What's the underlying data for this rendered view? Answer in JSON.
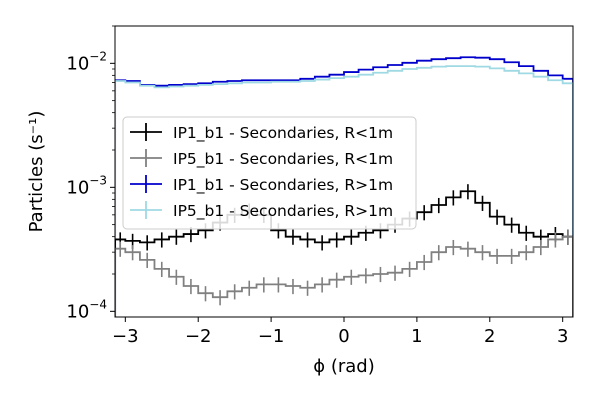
{
  "chart_data": {
    "type": "line",
    "style": "step-histogram-with-error-bars",
    "xlabel": "ϕ (rad)",
    "ylabel": "Particles (s⁻¹)",
    "xlim": [
      -3.14159,
      3.14159
    ],
    "ylim": [
      9e-05,
      0.02
    ],
    "yscale": "log",
    "grid": false,
    "legend_position": "center-left",
    "x_ticks": [
      {
        "value": -3,
        "label": "−3"
      },
      {
        "value": -2,
        "label": "−2"
      },
      {
        "value": -1,
        "label": "−1"
      },
      {
        "value": 0,
        "label": "0"
      },
      {
        "value": 1,
        "label": "1"
      },
      {
        "value": 2,
        "label": "2"
      },
      {
        "value": 3,
        "label": "3"
      }
    ],
    "y_ticks": [
      {
        "value": 0.0001,
        "base": "10",
        "exp": "−4"
      },
      {
        "value": 0.001,
        "base": "10",
        "exp": "−3"
      },
      {
        "value": 0.01,
        "base": "10",
        "exp": "−2"
      }
    ],
    "y_minor_ticks": [
      0.0002,
      0.0003,
      0.0004,
      0.0005,
      0.0006,
      0.0007,
      0.0008,
      0.0009,
      0.002,
      0.003,
      0.004,
      0.005,
      0.006,
      0.007,
      0.008,
      0.009,
      0.02
    ],
    "series": [
      {
        "name": "IP1_b1 - Secondaries, R>1m",
        "color": "#0000cc",
        "errorbars": false,
        "x": [
          -3.14,
          -3.0,
          -2.8,
          -2.6,
          -2.4,
          -2.2,
          -2.0,
          -1.8,
          -1.6,
          -1.4,
          -1.2,
          -1.0,
          -0.8,
          -0.6,
          -0.4,
          -0.2,
          0.0,
          0.2,
          0.4,
          0.6,
          0.8,
          1.0,
          1.2,
          1.4,
          1.6,
          1.8,
          2.0,
          2.2,
          2.4,
          2.6,
          2.8,
          3.0
        ],
        "y": [
          0.0073,
          0.0072,
          0.0067,
          0.0066,
          0.0067,
          0.0068,
          0.0069,
          0.0071,
          0.0072,
          0.0073,
          0.0073,
          0.0073,
          0.0073,
          0.0075,
          0.0078,
          0.0081,
          0.0085,
          0.0089,
          0.0093,
          0.0097,
          0.0101,
          0.0105,
          0.0108,
          0.011,
          0.0112,
          0.0111,
          0.0108,
          0.0102,
          0.0095,
          0.0087,
          0.008,
          0.0075
        ]
      },
      {
        "name": "IP5_b1 - Secondaries, R>1m",
        "color": "#9fd9e3",
        "errorbars": false,
        "x": [
          -3.14,
          -3.0,
          -2.8,
          -2.6,
          -2.4,
          -2.2,
          -2.0,
          -1.8,
          -1.6,
          -1.4,
          -1.2,
          -1.0,
          -0.8,
          -0.6,
          -0.4,
          -0.2,
          0.0,
          0.2,
          0.4,
          0.6,
          0.8,
          1.0,
          1.2,
          1.4,
          1.6,
          1.8,
          2.0,
          2.2,
          2.4,
          2.6,
          2.8,
          3.0
        ],
        "y": [
          0.0072,
          0.007,
          0.0066,
          0.0064,
          0.0065,
          0.0066,
          0.0067,
          0.0068,
          0.0069,
          0.007,
          0.007,
          0.0071,
          0.0071,
          0.0072,
          0.0074,
          0.0076,
          0.0078,
          0.0081,
          0.0084,
          0.0087,
          0.009,
          0.0092,
          0.0094,
          0.0095,
          0.0095,
          0.0094,
          0.0091,
          0.0087,
          0.0083,
          0.0078,
          0.0073,
          0.0069
        ]
      },
      {
        "name": "IP1_b1 - Secondaries, R<1m",
        "color": "#000000",
        "errorbars": true,
        "x": [
          -3.14,
          -3.0,
          -2.8,
          -2.6,
          -2.4,
          -2.2,
          -2.0,
          -1.8,
          -1.6,
          -1.4,
          -1.2,
          -1.0,
          -0.8,
          -0.6,
          -0.4,
          -0.2,
          0.0,
          0.2,
          0.4,
          0.6,
          0.8,
          1.0,
          1.2,
          1.4,
          1.6,
          1.8,
          2.0,
          2.2,
          2.4,
          2.6,
          2.8,
          3.0
        ],
        "y": [
          0.00038,
          0.00037,
          0.00036,
          0.00038,
          0.0004,
          0.00042,
          0.00045,
          0.00052,
          0.0006,
          0.00065,
          0.0006,
          0.00045,
          0.0004,
          0.00038,
          0.00036,
          0.00038,
          0.0004,
          0.00043,
          0.00045,
          0.0005,
          0.00056,
          0.00063,
          0.00072,
          0.00083,
          0.00093,
          0.00075,
          0.00058,
          0.0005,
          0.00043,
          0.0004,
          0.00042,
          0.0004
        ]
      },
      {
        "name": "IP5_b1 - Secondaries, R<1m",
        "color": "#808080",
        "errorbars": true,
        "x": [
          -3.14,
          -3.0,
          -2.8,
          -2.6,
          -2.4,
          -2.2,
          -2.0,
          -1.8,
          -1.6,
          -1.4,
          -1.2,
          -1.0,
          -0.8,
          -0.6,
          -0.4,
          -0.2,
          0.0,
          0.2,
          0.4,
          0.6,
          0.8,
          1.0,
          1.2,
          1.4,
          1.6,
          1.8,
          2.0,
          2.2,
          2.4,
          2.6,
          2.8,
          3.0
        ],
        "y": [
          0.00032,
          0.0003,
          0.00026,
          0.00022,
          0.00019,
          0.00016,
          0.00014,
          0.00013,
          0.000145,
          0.000155,
          0.000165,
          0.000165,
          0.00016,
          0.000155,
          0.000165,
          0.00018,
          0.00019,
          0.000195,
          0.0002,
          0.000205,
          0.00022,
          0.00025,
          0.0003,
          0.00033,
          0.00032,
          0.0003,
          0.00028,
          0.00028,
          0.0003,
          0.00033,
          0.00038,
          0.0004
        ]
      }
    ],
    "legend_order": [
      2,
      3,
      0,
      1
    ]
  }
}
